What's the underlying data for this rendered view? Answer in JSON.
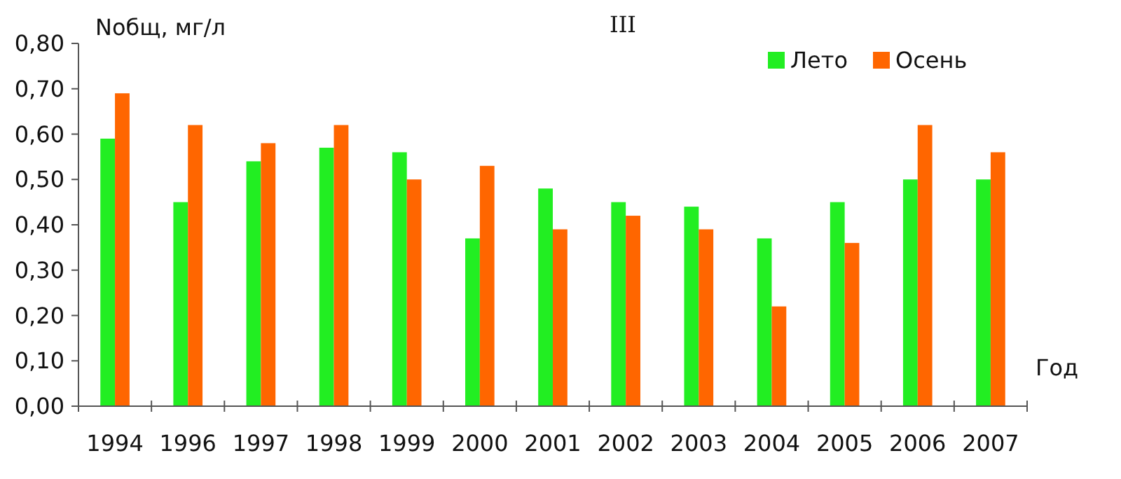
{
  "chart_data": {
    "type": "bar",
    "title": "III",
    "ylabel": "Nобщ, мг/л",
    "xlabel": "Год",
    "categories": [
      "1994",
      "1996",
      "1997",
      "1998",
      "1999",
      "2000",
      "2001",
      "2002",
      "2003",
      "2004",
      "2005",
      "2006",
      "2007"
    ],
    "series": [
      {
        "name": "Лето",
        "color": "#22ee22",
        "values": [
          0.59,
          0.45,
          0.54,
          0.57,
          0.56,
          0.37,
          0.48,
          0.45,
          0.44,
          0.37,
          0.45,
          0.5,
          0.5
        ]
      },
      {
        "name": "Осень",
        "color": "#ff6600",
        "values": [
          0.69,
          0.62,
          0.58,
          0.62,
          0.5,
          0.53,
          0.39,
          0.42,
          0.39,
          0.22,
          0.36,
          0.62,
          0.56
        ]
      }
    ],
    "ylim": [
      0,
      0.8
    ],
    "yticks": [
      {
        "value": 0,
        "label": "0,00"
      },
      {
        "value": 0.1,
        "label": "0,10"
      },
      {
        "value": 0.2,
        "label": "0,20"
      },
      {
        "value": 0.3,
        "label": "0,30"
      },
      {
        "value": 0.4,
        "label": "0,40"
      },
      {
        "value": 0.5,
        "label": "0,50"
      },
      {
        "value": 0.6,
        "label": "0,60"
      },
      {
        "value": 0.7,
        "label": "0,70"
      },
      {
        "value": 0.8,
        "label": "0,80"
      }
    ],
    "grid": false,
    "legend": "top right"
  }
}
